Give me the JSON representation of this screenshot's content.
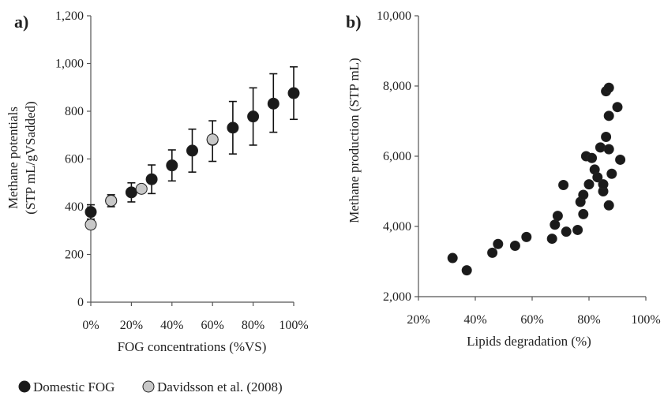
{
  "colors": {
    "domestic": "#1a1a1a",
    "davidsson": "#c8c8c8",
    "axis": "#555555",
    "point_stroke": "#222222",
    "errorbar": "#111111"
  },
  "legend": {
    "domestic_label": "Domestic FOG",
    "davidsson_label": "Davidsson et al. (2008)"
  },
  "chart_data": [
    {
      "panel": "a)",
      "type": "scatter",
      "title": "",
      "xlabel": "FOG concentrations (%VS)",
      "ylabel_line1": "Methane potentials",
      "ylabel_line2": "(STP mL/gVSadded)",
      "xlim": [
        0,
        100
      ],
      "ylim": [
        0,
        1200
      ],
      "xticks": [
        0,
        20,
        40,
        60,
        80,
        100
      ],
      "xtick_labels": [
        "0%",
        "20%",
        "40%",
        "60%",
        "80%",
        "100%"
      ],
      "yticks": [
        0,
        200,
        400,
        600,
        800,
        1000,
        1200
      ],
      "ytick_labels": [
        "0",
        "200",
        "400",
        "600",
        "800",
        "1,000",
        "1,200"
      ],
      "grid": false,
      "series": [
        {
          "name": "Domestic FOG",
          "x": [
            0,
            10,
            20,
            30,
            40,
            50,
            60,
            70,
            80,
            90,
            100
          ],
          "y": [
            378,
            425,
            460,
            515,
            573,
            635,
            680,
            731,
            778,
            832,
            876
          ],
          "err_low": [
            30,
            25,
            40,
            60,
            65,
            90,
            90,
            110,
            120,
            120,
            110
          ],
          "err_high": [
            30,
            25,
            40,
            60,
            65,
            90,
            80,
            110,
            120,
            125,
            110
          ]
        },
        {
          "name": "Davidsson et al. (2008)",
          "x": [
            0,
            10,
            25,
            60
          ],
          "y": [
            325,
            425,
            475,
            682
          ]
        }
      ]
    },
    {
      "panel": "b)",
      "type": "scatter",
      "title": "",
      "xlabel": "Lipids degradation (%)",
      "ylabel": "Methane production (STP mL)",
      "xlim": [
        20,
        100
      ],
      "ylim": [
        2000,
        10000
      ],
      "xticks": [
        20,
        40,
        60,
        80,
        100
      ],
      "xtick_labels": [
        "20%",
        "40%",
        "60%",
        "80%",
        "100%"
      ],
      "yticks": [
        2000,
        4000,
        6000,
        8000,
        10000
      ],
      "ytick_labels": [
        "2,000",
        "4,000",
        "6,000",
        "8,000",
        "10,000"
      ],
      "grid": false,
      "series": [
        {
          "x": [
            32,
            37,
            46,
            48,
            54,
            58,
            67,
            68,
            69,
            71,
            72,
            76,
            77,
            78,
            78,
            79,
            80,
            81,
            82,
            83,
            84,
            85,
            85,
            86,
            86,
            87,
            87,
            87,
            87,
            88,
            90,
            91
          ],
          "y": [
            3100,
            2750,
            3250,
            3500,
            3450,
            3700,
            3650,
            4050,
            4300,
            5180,
            3850,
            3900,
            4700,
            4350,
            4900,
            6000,
            5200,
            5950,
            5620,
            5400,
            6250,
            5000,
            5200,
            6550,
            7850,
            6200,
            4600,
            7950,
            7150,
            5500,
            7400,
            5900
          ]
        }
      ]
    }
  ]
}
